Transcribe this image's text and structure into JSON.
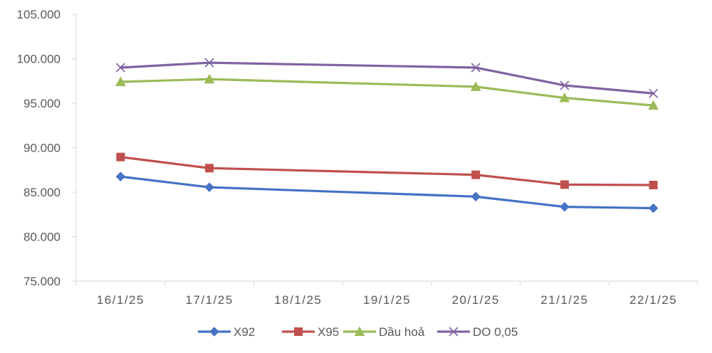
{
  "chart_data": {
    "type": "line",
    "title": "",
    "xlabel": "",
    "ylabel": "",
    "categories": [
      "16/1/25",
      "17/1/25",
      "18/1/25",
      "19/1/25",
      "20/1/25",
      "21/1/25",
      "22/1/25"
    ],
    "ylim": [
      75000,
      105000
    ],
    "yticks": [
      "75.000",
      "80.000",
      "85.000",
      "90.000",
      "95.000",
      "100.000",
      "105.000"
    ],
    "ytick_values": [
      75000,
      80000,
      85000,
      90000,
      95000,
      100000,
      105000
    ],
    "grid": false,
    "legend_position": "bottom",
    "series": [
      {
        "name": "X92",
        "color": "#4472C4",
        "marker": "diamond",
        "values": [
          86750,
          85550,
          null,
          null,
          84500,
          83350,
          83200
        ]
      },
      {
        "name": "X95",
        "color": "#C0504D",
        "marker": "square",
        "values": [
          88950,
          87700,
          null,
          null,
          86950,
          85850,
          85800
        ]
      },
      {
        "name": "Dầu hoả",
        "color": "#9BBB59",
        "marker": "triangle",
        "values": [
          97400,
          97700,
          null,
          null,
          96850,
          95600,
          94750
        ]
      },
      {
        "name": "DO 0,05",
        "color": "#8064A2",
        "marker": "cross",
        "values": [
          99000,
          99550,
          null,
          null,
          99000,
          97000,
          96100
        ]
      }
    ]
  }
}
